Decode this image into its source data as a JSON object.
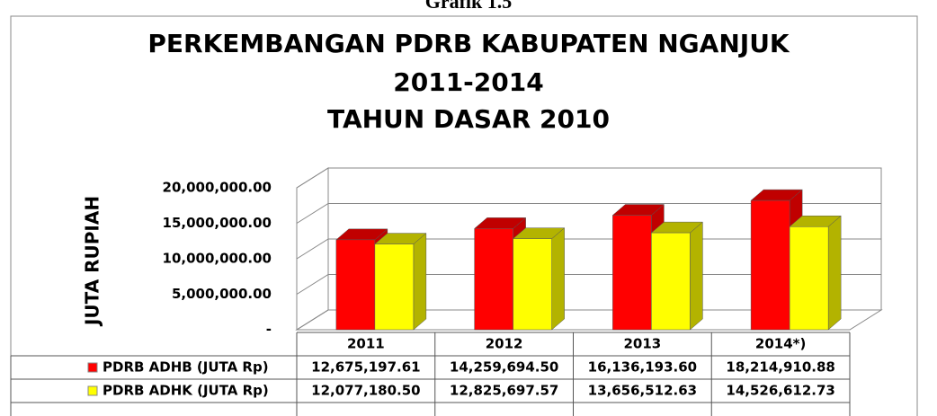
{
  "caption": "Grafik 1.5",
  "chart_data": {
    "type": "bar3d",
    "title": [
      "PERKEMBANGAN PDRB KABUPATEN NGANJUK",
      "2011-2014",
      "TAHUN DASAR 2010"
    ],
    "y_label": "JUTA RUPIAH",
    "categories": [
      "2011",
      "2012",
      "2013",
      "2014*)"
    ],
    "series": [
      {
        "name": "PDRB ADHB (JUTA Rp)",
        "color": "#ff0000",
        "side_color": "#c00000",
        "values": [
          12675197.61,
          14259694.5,
          16136193.6,
          18214910.88
        ],
        "value_labels": [
          "12,675,197.61",
          "14,259,694.50",
          "16,136,193.60",
          "18,214,910.88"
        ]
      },
      {
        "name": "PDRB ADHK (JUTA Rp)",
        "color": "#ffff00",
        "side_color": "#b3b300",
        "values": [
          12077180.5,
          12825697.57,
          13656512.63,
          14526612.73
        ],
        "value_labels": [
          "12,077,180.50",
          "12,825,697.57",
          "13,656,512.63",
          "14,526,612.73"
        ]
      }
    ],
    "ylim": [
      0,
      20000000
    ],
    "yticks": [
      {
        "value": 0,
        "label": "-"
      },
      {
        "value": 5000000,
        "label": "5,000,000.00"
      },
      {
        "value": 10000000,
        "label": "10,000,000.00"
      },
      {
        "value": 15000000,
        "label": "15,000,000.00"
      },
      {
        "value": 20000000,
        "label": "20,000,000.00"
      }
    ],
    "grid": true
  }
}
